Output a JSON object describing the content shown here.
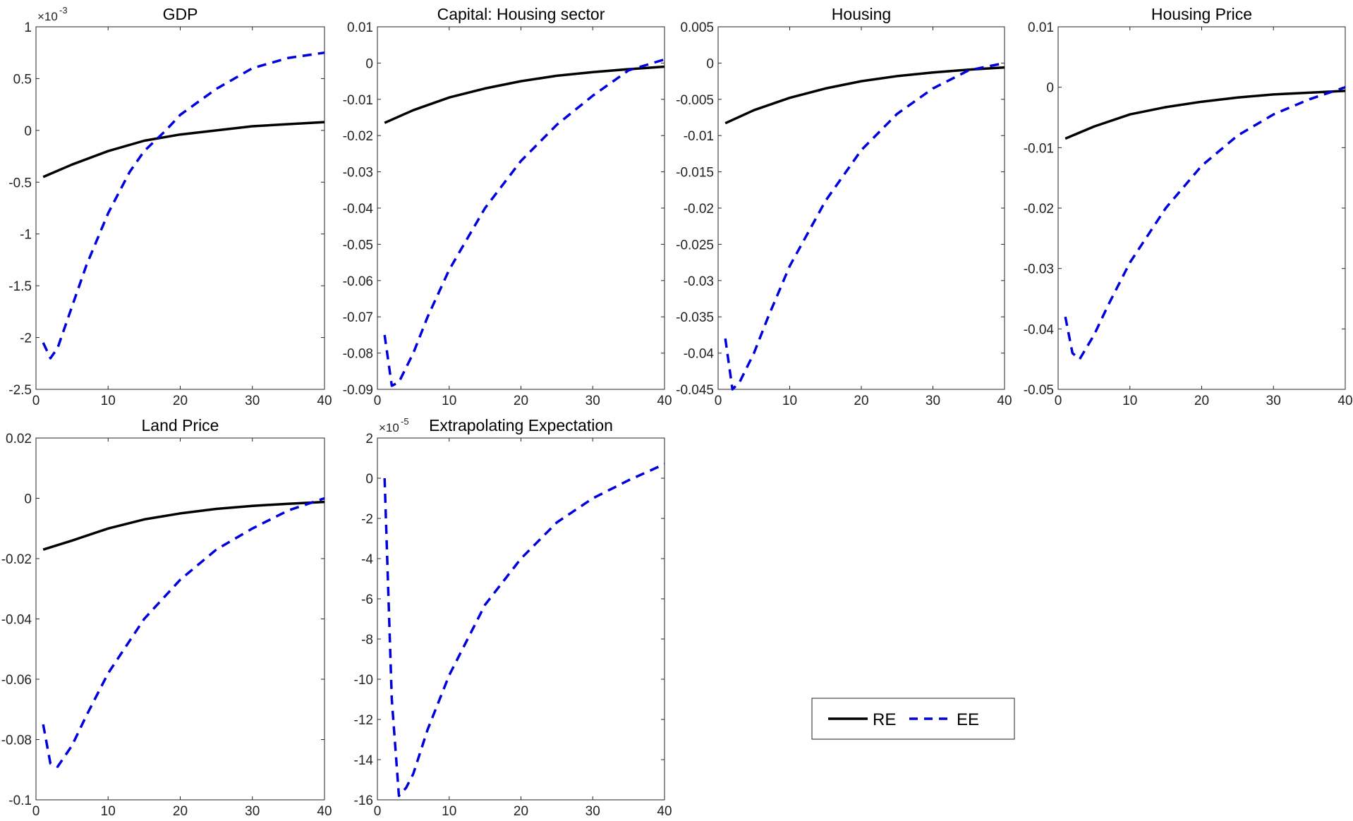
{
  "chart_data": [
    {
      "type": "line",
      "title": "GDP",
      "exponent_label": "×10",
      "exponent": "-3",
      "xlim": [
        0,
        40
      ],
      "ylim": [
        -2.5,
        1
      ],
      "xticks": [
        0,
        10,
        20,
        30,
        40
      ],
      "yticks": [
        -2.5,
        -2,
        -1.5,
        -1,
        -0.5,
        0,
        0.5,
        1
      ],
      "ytick_labels": [
        "-2.5",
        "-2",
        "-1.5",
        "-1",
        "-0.5",
        "0",
        "0.5",
        "1"
      ],
      "series": [
        {
          "name": "RE",
          "x": [
            1,
            5,
            10,
            15,
            20,
            25,
            30,
            35,
            40
          ],
          "y": [
            -0.45,
            -0.33,
            -0.2,
            -0.1,
            -0.04,
            0.0,
            0.04,
            0.06,
            0.08
          ]
        },
        {
          "name": "EE",
          "x": [
            1,
            2,
            3,
            5,
            7,
            10,
            13,
            15,
            18,
            20,
            25,
            30,
            35,
            40
          ],
          "y": [
            -2.05,
            -2.2,
            -2.1,
            -1.7,
            -1.3,
            -0.8,
            -0.4,
            -0.2,
            0.0,
            0.15,
            0.4,
            0.6,
            0.7,
            0.75
          ]
        }
      ]
    },
    {
      "type": "line",
      "title": "Capital: Housing sector",
      "xlim": [
        0,
        40
      ],
      "ylim": [
        -0.09,
        0.01
      ],
      "xticks": [
        0,
        10,
        20,
        30,
        40
      ],
      "yticks": [
        -0.09,
        -0.08,
        -0.07,
        -0.06,
        -0.05,
        -0.04,
        -0.03,
        -0.02,
        -0.01,
        0,
        0.01
      ],
      "ytick_labels": [
        "-0.09",
        "-0.08",
        "-0.07",
        "-0.06",
        "-0.05",
        "-0.04",
        "-0.03",
        "-0.02",
        "-0.01",
        "0",
        "0.01"
      ],
      "series": [
        {
          "name": "RE",
          "x": [
            1,
            5,
            10,
            15,
            20,
            25,
            30,
            35,
            40
          ],
          "y": [
            -0.0165,
            -0.013,
            -0.0095,
            -0.007,
            -0.005,
            -0.0035,
            -0.0025,
            -0.0017,
            -0.001
          ]
        },
        {
          "name": "EE",
          "x": [
            1,
            2,
            3,
            5,
            7,
            10,
            15,
            20,
            25,
            30,
            35,
            40
          ],
          "y": [
            -0.075,
            -0.089,
            -0.088,
            -0.08,
            -0.07,
            -0.057,
            -0.04,
            -0.027,
            -0.017,
            -0.009,
            -0.002,
            0.001
          ]
        }
      ]
    },
    {
      "type": "line",
      "title": "Housing",
      "xlim": [
        0,
        40
      ],
      "ylim": [
        -0.045,
        0.005
      ],
      "xticks": [
        0,
        10,
        20,
        30,
        40
      ],
      "yticks": [
        -0.045,
        -0.04,
        -0.035,
        -0.03,
        -0.025,
        -0.02,
        -0.015,
        -0.01,
        -0.005,
        0,
        0.005
      ],
      "ytick_labels": [
        "-0.045",
        "-0.04",
        "-0.035",
        "-0.03",
        "-0.025",
        "-0.02",
        "-0.015",
        "-0.01",
        "-0.005",
        "0",
        "0.005"
      ],
      "series": [
        {
          "name": "RE",
          "x": [
            1,
            5,
            10,
            15,
            20,
            25,
            30,
            35,
            40
          ],
          "y": [
            -0.0083,
            -0.0065,
            -0.0048,
            -0.0035,
            -0.0025,
            -0.0018,
            -0.0013,
            -0.0009,
            -0.0006
          ]
        },
        {
          "name": "EE",
          "x": [
            1,
            2,
            3,
            5,
            7,
            10,
            15,
            20,
            25,
            30,
            35,
            40
          ],
          "y": [
            -0.038,
            -0.045,
            -0.044,
            -0.04,
            -0.035,
            -0.028,
            -0.019,
            -0.012,
            -0.007,
            -0.0035,
            -0.001,
            0.0
          ]
        }
      ]
    },
    {
      "type": "line",
      "title": "Housing Price",
      "xlim": [
        0,
        40
      ],
      "ylim": [
        -0.05,
        0.01
      ],
      "xticks": [
        0,
        10,
        20,
        30,
        40
      ],
      "yticks": [
        -0.05,
        -0.04,
        -0.03,
        -0.02,
        -0.01,
        0,
        0.01
      ],
      "ytick_labels": [
        "-0.05",
        "-0.04",
        "-0.03",
        "-0.02",
        "-0.01",
        "0",
        "0.01"
      ],
      "series": [
        {
          "name": "RE",
          "x": [
            1,
            5,
            10,
            15,
            20,
            25,
            30,
            35,
            40
          ],
          "y": [
            -0.0085,
            -0.0065,
            -0.0045,
            -0.0033,
            -0.0024,
            -0.0017,
            -0.0012,
            -0.0009,
            -0.0006
          ]
        },
        {
          "name": "EE",
          "x": [
            1,
            2,
            3,
            5,
            7,
            10,
            15,
            20,
            25,
            30,
            35,
            40
          ],
          "y": [
            -0.038,
            -0.044,
            -0.045,
            -0.041,
            -0.036,
            -0.029,
            -0.02,
            -0.013,
            -0.008,
            -0.0045,
            -0.002,
            0.0
          ]
        }
      ]
    },
    {
      "type": "line",
      "title": "Land Price",
      "xlim": [
        0,
        40
      ],
      "ylim": [
        -0.1,
        0.02
      ],
      "xticks": [
        0,
        10,
        20,
        30,
        40
      ],
      "yticks": [
        -0.1,
        -0.08,
        -0.06,
        -0.04,
        -0.02,
        0,
        0.02
      ],
      "ytick_labels": [
        "-0.1",
        "-0.08",
        "-0.06",
        "-0.04",
        "-0.02",
        "0",
        "0.02"
      ],
      "series": [
        {
          "name": "RE",
          "x": [
            1,
            5,
            10,
            15,
            20,
            25,
            30,
            35,
            40
          ],
          "y": [
            -0.017,
            -0.014,
            -0.01,
            -0.007,
            -0.005,
            -0.0035,
            -0.0025,
            -0.0018,
            -0.0012
          ]
        },
        {
          "name": "EE",
          "x": [
            1,
            2,
            3,
            5,
            7,
            10,
            15,
            20,
            25,
            30,
            35,
            40
          ],
          "y": [
            -0.075,
            -0.088,
            -0.089,
            -0.082,
            -0.072,
            -0.058,
            -0.04,
            -0.027,
            -0.017,
            -0.01,
            -0.004,
            0.0
          ]
        }
      ]
    },
    {
      "type": "line",
      "title": "Extrapolating Expectation",
      "exponent_label": "×10",
      "exponent": "-5",
      "xlim": [
        0,
        40
      ],
      "ylim": [
        -16,
        2
      ],
      "xticks": [
        0,
        10,
        20,
        30,
        40
      ],
      "yticks": [
        -16,
        -14,
        -12,
        -10,
        -8,
        -6,
        -4,
        -2,
        0,
        2
      ],
      "ytick_labels": [
        "-16",
        "-14",
        "-12",
        "-10",
        "-8",
        "-6",
        "-4",
        "-2",
        "0",
        "2"
      ],
      "series": [
        {
          "name": "EE",
          "x": [
            1,
            2,
            3,
            4,
            5,
            7,
            10,
            15,
            20,
            25,
            30,
            35,
            40
          ],
          "y": [
            0,
            -11,
            -15.8,
            -15.4,
            -14.7,
            -12.5,
            -9.8,
            -6.3,
            -4,
            -2.2,
            -1,
            -0.1,
            0.7
          ]
        }
      ]
    }
  ],
  "legend": {
    "placement": "bottom-right",
    "entries": [
      {
        "label": "RE",
        "color": "#000000",
        "style": "solid"
      },
      {
        "label": "EE",
        "color": "#0000dd",
        "style": "dashed"
      }
    ]
  },
  "colors": {
    "RE": "#000000",
    "EE": "#0000dd"
  }
}
